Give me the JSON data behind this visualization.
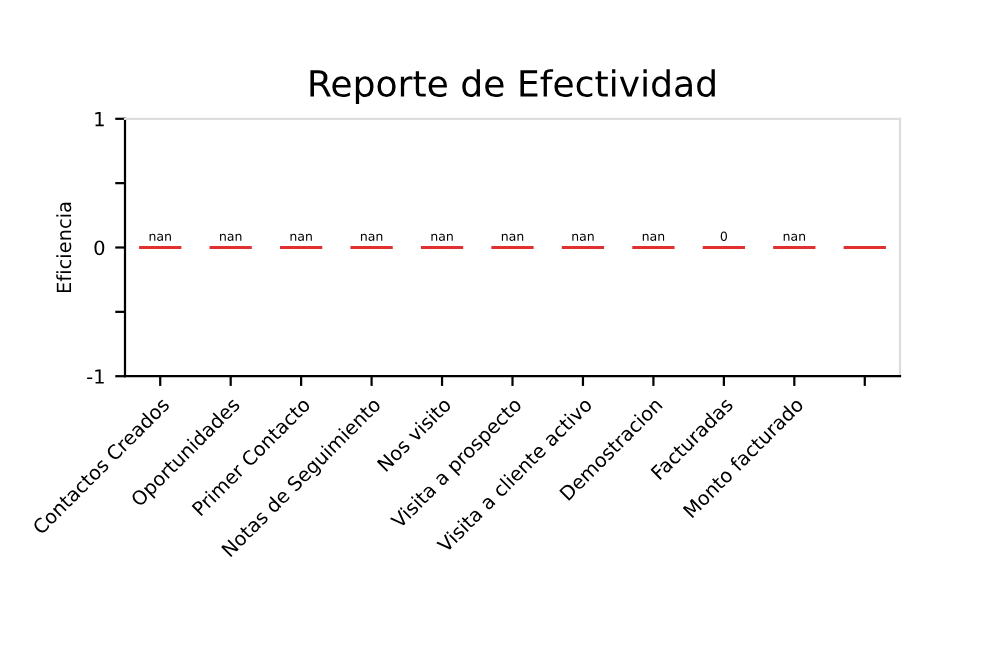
{
  "chart_data": {
    "type": "bar",
    "title": "Reporte de Efectividad",
    "ylabel": "Eficiencia",
    "categories": [
      "Contactos Creados",
      "Oportunidades",
      "Primer Contacto",
      "Notas de Seguimiento",
      "Nos visito",
      "Visita a prospecto",
      "Visita a cliente activo",
      "Demostracion",
      "Facturadas",
      "Monto facturado",
      null
    ],
    "values": [
      0,
      0,
      0,
      0,
      0,
      0,
      0,
      0,
      0,
      0,
      0
    ],
    "value_labels": [
      "nan",
      "nan",
      "nan",
      "nan",
      "nan",
      "nan",
      "nan",
      "nan",
      "0",
      "nan",
      null
    ],
    "color": "#e03030",
    "ylim": [
      -1,
      1
    ],
    "yticks": [
      -1,
      {
        "value": -0.5,
        "label": null
      },
      0,
      {
        "value": 0.5,
        "label": null
      },
      1
    ],
    "grid": false,
    "legend": false
  }
}
